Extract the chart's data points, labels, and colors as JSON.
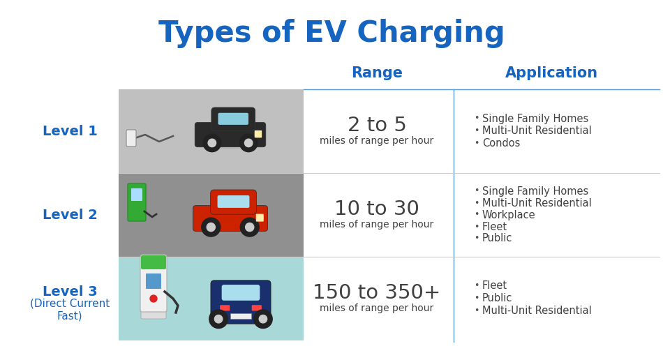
{
  "title": "Types of EV Charging",
  "title_color": "#1565C0",
  "title_fontsize": 30,
  "header_range": "Range",
  "header_application": "Application",
  "header_color": "#1565C0",
  "header_fontsize": 15,
  "levels": [
    {
      "label": "Level 1",
      "label2": "",
      "range_large": "2 to 5",
      "range_small": "miles of range per hour",
      "applications": [
        "Single Family Homes",
        "Multi-Unit Residential",
        "Condos"
      ],
      "img_bg": "#c0c0c0"
    },
    {
      "label": "Level 2",
      "label2": "",
      "range_large": "10 to 30",
      "range_small": "miles of range per hour",
      "applications": [
        "Single Family Homes",
        "Multi-Unit Residential",
        "Workplace",
        "Fleet",
        "Public"
      ],
      "img_bg": "#909090"
    },
    {
      "label": "Level 3",
      "label2": "(Direct Current\nFast)",
      "range_large": "150 to 350+",
      "range_small": "miles of range per hour",
      "applications": [
        "Fleet",
        "Public",
        "Multi-Unit Residential"
      ],
      "img_bg": "#a8d8d8"
    }
  ],
  "level_label_color": "#1565C0",
  "level_label_fontsize": 14,
  "level_label2_fontsize": 11,
  "range_large_fontsize": 21,
  "range_small_fontsize": 10,
  "application_fontsize": 10.5,
  "bg_color": "#ffffff",
  "divider_color": "#5b9bd5",
  "row_divider_color": "#cccccc",
  "text_color": "#404040",
  "bullet_color": "#555555"
}
